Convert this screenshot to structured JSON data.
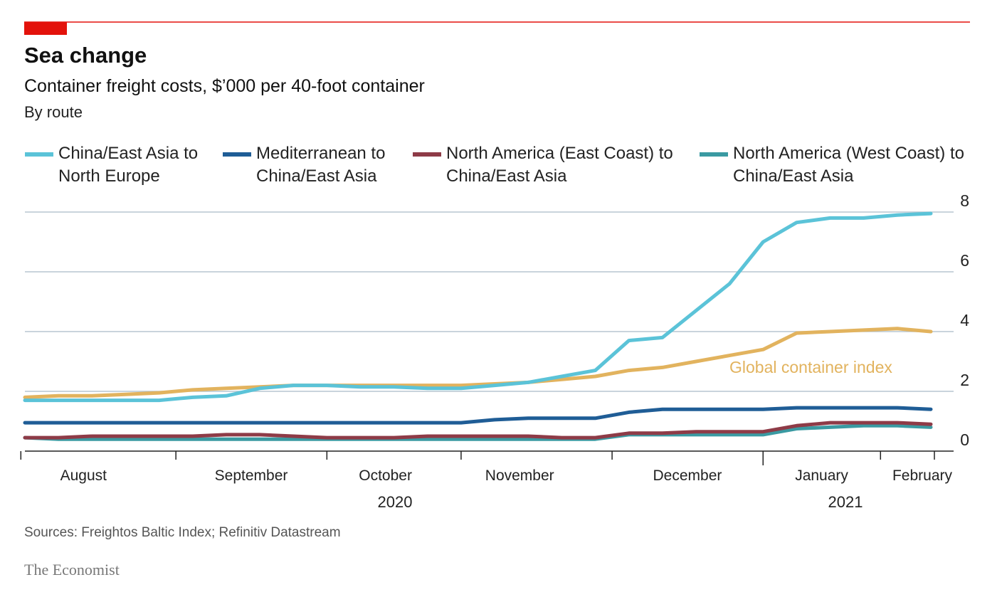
{
  "chart_data": {
    "type": "line",
    "title": "Sea change",
    "subtitle": "Container freight costs, $’000 per 40-foot container",
    "note": "By route",
    "source": "Sources: Freightos Baltic Index; Refinitiv Datastream",
    "brand": "The Economist",
    "categories": [
      null,
      null,
      "August",
      null,
      null,
      null,
      null,
      "September",
      null,
      null,
      null,
      "October",
      null,
      null,
      null,
      "November",
      null,
      null,
      null,
      null,
      "December",
      null,
      null,
      null,
      "January",
      null,
      null,
      "February"
    ],
    "years": [
      "2020",
      "2021"
    ],
    "ylim": [
      0,
      8
    ],
    "yticks": [
      0,
      2,
      4,
      6,
      8
    ],
    "grid": true,
    "series": [
      {
        "name": "China/East Asia to North Europe",
        "color": "#5bc3d8",
        "values": [
          1.7,
          1.7,
          1.7,
          1.7,
          1.7,
          1.8,
          1.85,
          2.1,
          2.2,
          2.2,
          2.15,
          2.15,
          2.1,
          2.1,
          2.2,
          2.3,
          2.5,
          2.7,
          3.7,
          3.8,
          4.7,
          5.6,
          7.0,
          7.65,
          7.8,
          7.8,
          7.9,
          7.95
        ]
      },
      {
        "name": "Mediterranean to China/East Asia",
        "color": "#1f5d96",
        "values": [
          0.95,
          0.95,
          0.95,
          0.95,
          0.95,
          0.95,
          0.95,
          0.95,
          0.95,
          0.95,
          0.95,
          0.95,
          0.95,
          0.95,
          1.05,
          1.1,
          1.1,
          1.1,
          1.3,
          1.4,
          1.4,
          1.4,
          1.4,
          1.45,
          1.45,
          1.45,
          1.45,
          1.4
        ]
      },
      {
        "name": "North America (East Coast) to China/East Asia",
        "color": "#8e3b47",
        "values": [
          0.45,
          0.45,
          0.5,
          0.5,
          0.5,
          0.5,
          0.55,
          0.55,
          0.5,
          0.45,
          0.45,
          0.45,
          0.5,
          0.5,
          0.5,
          0.5,
          0.45,
          0.45,
          0.6,
          0.6,
          0.65,
          0.65,
          0.65,
          0.85,
          0.95,
          0.95,
          0.95,
          0.9
        ]
      },
      {
        "name": "North America (West Coast) to China/East Asia",
        "color": "#3a9aa2",
        "values": [
          0.45,
          0.4,
          0.4,
          0.4,
          0.4,
          0.4,
          0.4,
          0.4,
          0.4,
          0.4,
          0.4,
          0.4,
          0.4,
          0.4,
          0.4,
          0.4,
          0.4,
          0.4,
          0.55,
          0.55,
          0.55,
          0.55,
          0.55,
          0.75,
          0.8,
          0.85,
          0.85,
          0.8
        ]
      }
    ],
    "index_series": {
      "name": "Global container index",
      "color": "#e2b35e",
      "values": [
        1.8,
        1.85,
        1.85,
        1.9,
        1.95,
        2.05,
        2.1,
        2.15,
        2.2,
        2.2,
        2.2,
        2.2,
        2.2,
        2.2,
        2.25,
        2.3,
        2.4,
        2.5,
        2.7,
        2.8,
        3.0,
        3.2,
        3.4,
        3.95,
        4.0,
        4.05,
        4.1,
        4.0
      ]
    }
  }
}
